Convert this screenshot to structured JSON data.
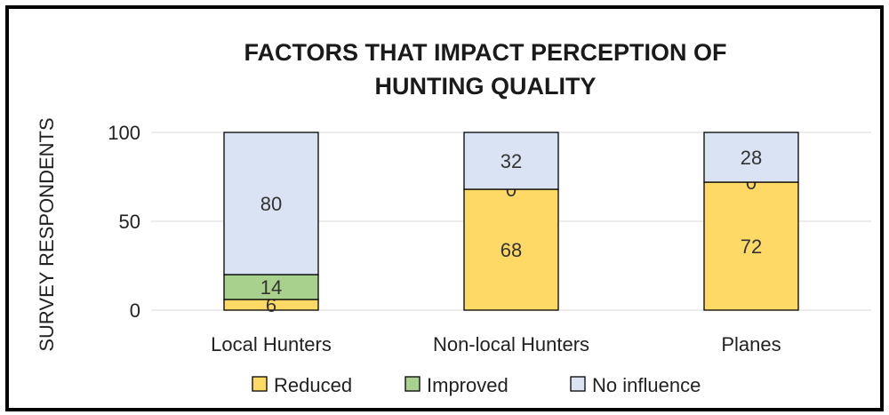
{
  "chart_data": {
    "type": "bar",
    "stacked": true,
    "title_lines": [
      "FACTORS THAT IMPACT PERCEPTION OF",
      "HUNTING QUALITY"
    ],
    "ylabel": "SURVEY RESPONDENTS",
    "xlabel": "",
    "ylim": [
      0,
      100
    ],
    "yticks": [
      0,
      50,
      100
    ],
    "categories": [
      "Local Hunters",
      "Non-local Hunters",
      "Planes"
    ],
    "series": [
      {
        "name": "Reduced",
        "values": [
          6,
          68,
          72
        ],
        "color": "#FFD966"
      },
      {
        "name": "Improved",
        "values": [
          14,
          0,
          0
        ],
        "color": "#A9D18E"
      },
      {
        "name": "No influence",
        "values": [
          80,
          32,
          28
        ],
        "color": "#DAE3F3"
      }
    ],
    "grid": true,
    "legend_position": "bottom"
  }
}
